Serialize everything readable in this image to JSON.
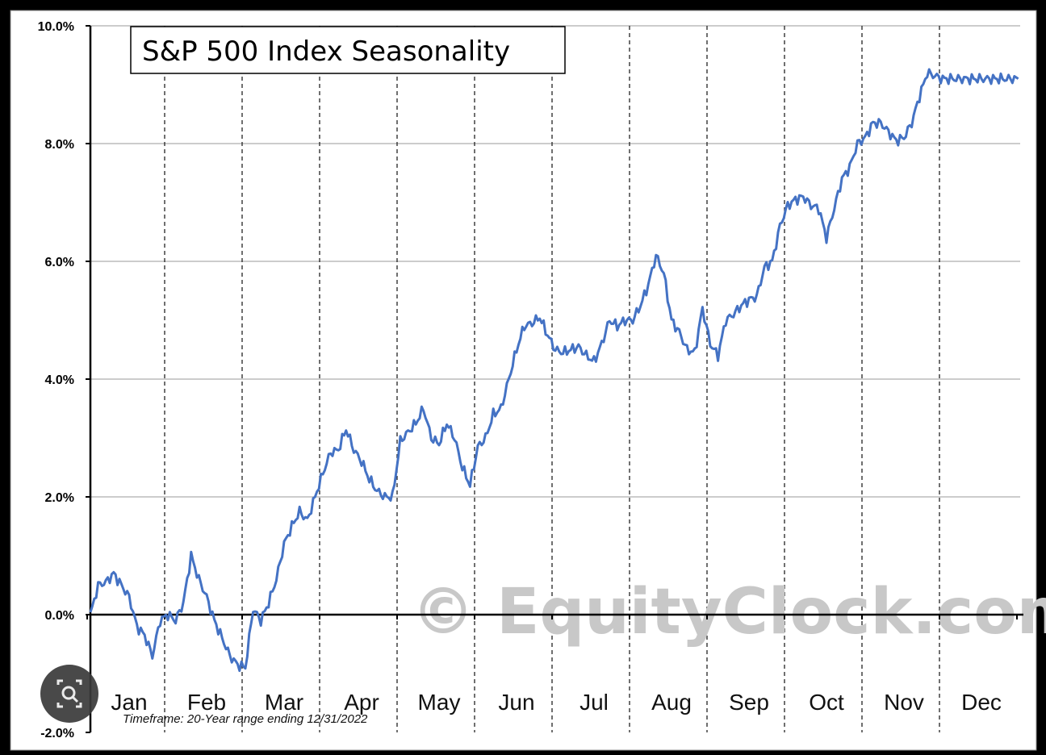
{
  "chart_data": {
    "type": "line",
    "title": "S&P 500 Index Seasonality",
    "footnote": "Timeframe: 20-Year range ending 12/31/2022",
    "watermark": "© EquityClock.com",
    "months": [
      "Jan",
      "Feb",
      "Mar",
      "Apr",
      "May",
      "Jun",
      "Jul",
      "Aug",
      "Sep",
      "Oct",
      "Nov",
      "Dec"
    ],
    "y_ticks": [
      "10.0%",
      "8.0%",
      "6.0%",
      "4.0%",
      "2.0%",
      "0.0%",
      "-2.0%"
    ],
    "ylim": [
      -2,
      10
    ],
    "grid": true,
    "series": [
      {
        "color": "#4472c4",
        "x": [
          0,
          0.1,
          0.2,
          0.3,
          0.4,
          0.5,
          0.6,
          0.7,
          0.8,
          0.9,
          1.0,
          1.1,
          1.2,
          1.3,
          1.4,
          1.5,
          1.6,
          1.7,
          1.8,
          1.9,
          2.0,
          2.1,
          2.2,
          2.3,
          2.4,
          2.5,
          2.6,
          2.7,
          2.8,
          2.9,
          3.0,
          3.1,
          3.2,
          3.3,
          3.4,
          3.5,
          3.6,
          3.7,
          3.8,
          3.9,
          4.0,
          4.1,
          4.2,
          4.3,
          4.4,
          4.5,
          4.6,
          4.7,
          4.8,
          4.9,
          5.0,
          5.1,
          5.2,
          5.3,
          5.4,
          5.5,
          5.6,
          5.7,
          5.8,
          5.9,
          6.0,
          6.1,
          6.2,
          6.3,
          6.4,
          6.5,
          6.6,
          6.7,
          6.8,
          6.9,
          7.0,
          7.1,
          7.2,
          7.3,
          7.4,
          7.5,
          7.6,
          7.7,
          7.8,
          7.9,
          8.0,
          8.1,
          8.2,
          8.3,
          8.4,
          8.5,
          8.6,
          8.7,
          8.8,
          8.9,
          9.0,
          9.1,
          9.2,
          9.3,
          9.4,
          9.5,
          9.6,
          9.7,
          9.8,
          9.9,
          10.0,
          10.1,
          10.2,
          10.3,
          10.4,
          10.5,
          10.6,
          10.7,
          10.8,
          10.9,
          11.0,
          11.1,
          11.2,
          11.3,
          11.4,
          11.5,
          11.6,
          11.7,
          11.8,
          11.9
        ],
        "values": [
          0.0,
          0.5,
          0.55,
          0.7,
          0.5,
          0.3,
          -0.2,
          -0.35,
          -0.7,
          -0.1,
          0.0,
          -0.1,
          0.2,
          1.0,
          0.6,
          0.3,
          -0.1,
          -0.4,
          -0.7,
          -0.85,
          -0.9,
          0.1,
          -0.1,
          0.2,
          0.6,
          1.2,
          1.5,
          1.75,
          1.6,
          2.0,
          2.4,
          2.75,
          2.8,
          3.15,
          2.8,
          2.6,
          2.3,
          2.1,
          2.0,
          2.0,
          2.95,
          3.1,
          3.25,
          3.5,
          3.0,
          2.9,
          3.25,
          3.0,
          2.5,
          2.2,
          2.85,
          3.0,
          3.4,
          3.5,
          4.0,
          4.5,
          4.9,
          4.95,
          5.05,
          4.75,
          4.5,
          4.45,
          4.5,
          4.55,
          4.4,
          4.3,
          4.6,
          5.0,
          4.9,
          5.0,
          5.0,
          5.25,
          5.6,
          6.1,
          5.8,
          5.0,
          4.8,
          4.5,
          4.45,
          5.2,
          4.6,
          4.4,
          5.0,
          5.1,
          5.25,
          5.35,
          5.4,
          5.9,
          6.0,
          6.6,
          6.95,
          7.05,
          7.1,
          6.95,
          6.9,
          6.4,
          6.9,
          7.4,
          7.6,
          8.0,
          8.1,
          8.35,
          8.35,
          8.2,
          8.05,
          8.1,
          8.35,
          8.8,
          9.2,
          9.15,
          9.1,
          9.1,
          9.1,
          9.1,
          9.1,
          9.1,
          9.1,
          9.1,
          9.1,
          9.1
        ]
      }
    ]
  }
}
